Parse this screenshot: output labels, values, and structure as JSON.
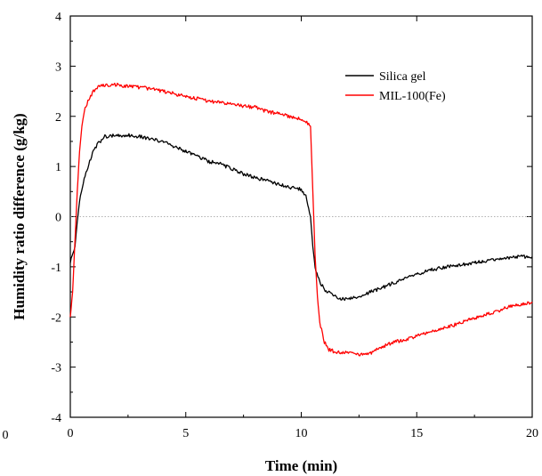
{
  "chart_data": {
    "type": "line",
    "title": "",
    "xlabel": "Time (min)",
    "ylabel": "Humidity ratio difference (g/kg)",
    "xlim": [
      0,
      20
    ],
    "ylim": [
      -4,
      4
    ],
    "x_ticks": [
      0,
      5,
      10,
      15,
      20
    ],
    "y_ticks": [
      4,
      3,
      2,
      1,
      0,
      -1,
      -2,
      -3,
      -4
    ],
    "stray_label": "0",
    "grid": false,
    "reference_line_y": 0,
    "legend_position": "top-right",
    "series": [
      {
        "name": "Silica gel",
        "color": "#000000",
        "x": [
          0,
          0.2,
          0.3,
          0.4,
          0.6,
          0.8,
          1.0,
          1.2,
          1.5,
          2.0,
          2.5,
          3.0,
          3.5,
          4.0,
          4.5,
          5.0,
          5.5,
          6.0,
          6.5,
          7.0,
          7.5,
          8.0,
          8.5,
          9.0,
          9.5,
          10.0,
          10.2,
          10.4,
          10.5,
          10.6,
          10.8,
          11.0,
          11.3,
          11.6,
          12.0,
          12.5,
          13.0,
          13.5,
          14.0,
          14.5,
          15.0,
          15.5,
          16.0,
          16.5,
          17.0,
          17.5,
          18.0,
          18.5,
          19.0,
          19.5,
          20.0
        ],
        "y": [
          -0.9,
          -0.6,
          -0.1,
          0.3,
          0.75,
          1.05,
          1.3,
          1.45,
          1.6,
          1.62,
          1.62,
          1.6,
          1.55,
          1.5,
          1.4,
          1.3,
          1.2,
          1.1,
          1.05,
          0.95,
          0.85,
          0.78,
          0.72,
          0.65,
          0.58,
          0.55,
          0.4,
          0.0,
          -0.6,
          -1.0,
          -1.3,
          -1.45,
          -1.55,
          -1.62,
          -1.65,
          -1.6,
          -1.5,
          -1.42,
          -1.32,
          -1.22,
          -1.15,
          -1.08,
          -1.02,
          -0.98,
          -0.95,
          -0.92,
          -0.88,
          -0.85,
          -0.82,
          -0.8,
          -0.8
        ]
      },
      {
        "name": "MIL-100(Fe)",
        "color": "#ff0000",
        "x": [
          0,
          0.1,
          0.2,
          0.3,
          0.4,
          0.5,
          0.6,
          0.8,
          1.0,
          1.2,
          1.5,
          2.0,
          2.5,
          3.0,
          3.5,
          4.0,
          4.5,
          5.0,
          5.5,
          6.0,
          6.5,
          7.0,
          7.5,
          8.0,
          8.5,
          9.0,
          9.5,
          10.0,
          10.2,
          10.4,
          10.5,
          10.6,
          10.7,
          10.8,
          11.0,
          11.2,
          11.5,
          12.0,
          12.5,
          13.0,
          13.5,
          14.0,
          14.5,
          15.0,
          15.5,
          16.0,
          16.5,
          17.0,
          17.5,
          18.0,
          18.5,
          19.0,
          19.5,
          20.0
        ],
        "y": [
          -2.0,
          -1.5,
          -0.5,
          0.5,
          1.3,
          1.8,
          2.1,
          2.35,
          2.5,
          2.58,
          2.62,
          2.63,
          2.6,
          2.58,
          2.55,
          2.5,
          2.45,
          2.4,
          2.35,
          2.3,
          2.28,
          2.25,
          2.2,
          2.18,
          2.1,
          2.05,
          2.0,
          1.95,
          1.9,
          1.8,
          0.5,
          -0.8,
          -1.6,
          -2.1,
          -2.5,
          -2.65,
          -2.7,
          -2.72,
          -2.75,
          -2.72,
          -2.6,
          -2.5,
          -2.45,
          -2.38,
          -2.32,
          -2.25,
          -2.18,
          -2.1,
          -2.02,
          -1.95,
          -1.88,
          -1.8,
          -1.75,
          -1.7
        ]
      }
    ]
  }
}
